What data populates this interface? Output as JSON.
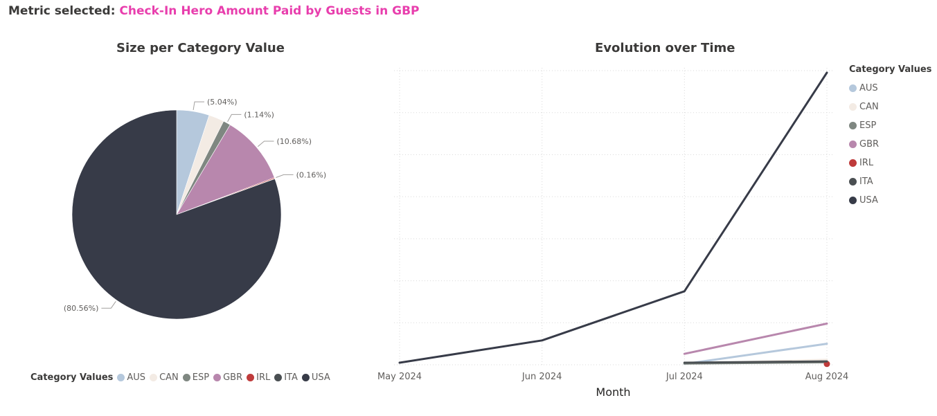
{
  "metric": {
    "label": "Metric selected:",
    "value": "Check-In Hero Amount Paid by Guests in GBP",
    "color": "#e83ead"
  },
  "chart_data": [
    {
      "type": "pie",
      "title": "Size per Category Value",
      "legend_title": "Category Values",
      "legend_position": "bottom",
      "slices": [
        {
          "name": "AUS",
          "percent": 5.04,
          "label": "(5.04%)",
          "color": "#b5c8dc"
        },
        {
          "name": "CAN",
          "percent": 2.38,
          "label": "",
          "color": "#f3ebe4"
        },
        {
          "name": "ESP",
          "percent": 1.14,
          "label": "(1.14%)",
          "color": "#7f8781"
        },
        {
          "name": "GBR",
          "percent": 10.68,
          "label": "(10.68%)",
          "color": "#b887ad"
        },
        {
          "name": "IRL",
          "percent": 0.16,
          "label": "(0.16%)",
          "color": "#bf3b3b"
        },
        {
          "name": "ITA",
          "percent": 0.04,
          "label": "",
          "color": "#4a4f52"
        },
        {
          "name": "USA",
          "percent": 80.56,
          "label": "(80.56%)",
          "color": "#373b48"
        }
      ]
    },
    {
      "type": "line",
      "title": "Evolution over Time",
      "xlabel": "Month",
      "legend_title": "Category Values",
      "legend_position": "right",
      "grid": true,
      "categories": [
        "May 2024",
        "Jun 2024",
        "Jul 2024",
        "Aug 2024"
      ],
      "ylim": [
        0,
        7
      ],
      "series": [
        {
          "name": "AUS",
          "color": "#b5c8dc",
          "values": [
            null,
            null,
            0.02,
            0.5
          ]
        },
        {
          "name": "CAN",
          "color": "#f3ebe4",
          "values": [
            null,
            null,
            0.03,
            0.12
          ]
        },
        {
          "name": "ESP",
          "color": "#7f8781",
          "values": [
            null,
            null,
            0.03,
            0.06
          ]
        },
        {
          "name": "GBR",
          "color": "#b887ad",
          "values": [
            null,
            null,
            0.26,
            0.98
          ]
        },
        {
          "name": "IRL",
          "color": "#bf3b3b",
          "values": [
            null,
            null,
            null,
            0.02
          ]
        },
        {
          "name": "ITA",
          "color": "#4a4f52",
          "values": [
            null,
            null,
            0.05,
            0.08
          ]
        },
        {
          "name": "USA",
          "color": "#373b48",
          "values": [
            0.05,
            0.58,
            1.75,
            6.95
          ]
        }
      ]
    }
  ]
}
